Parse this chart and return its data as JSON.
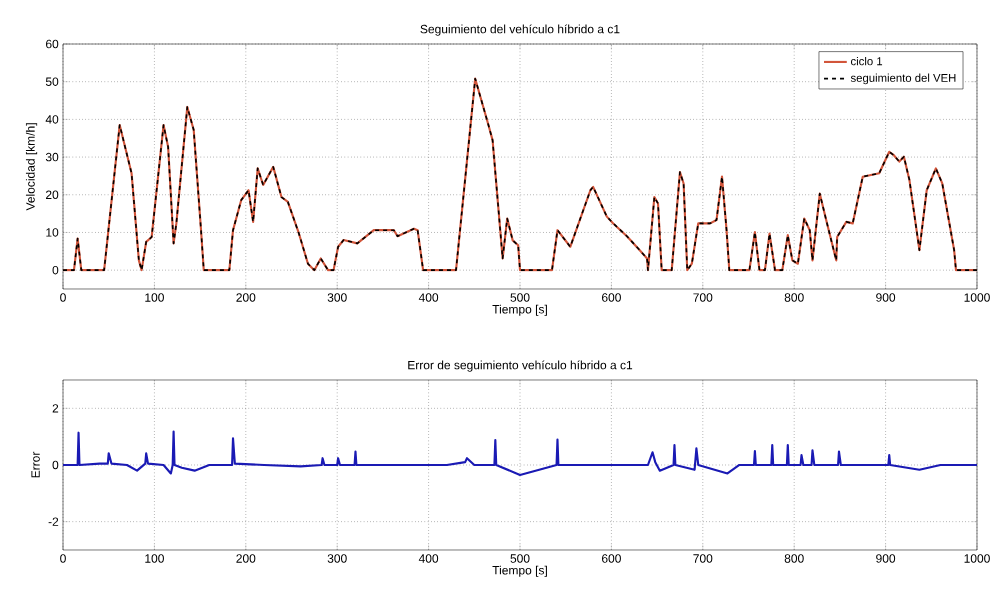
{
  "chart_data": [
    {
      "type": "line",
      "title": "Seguimiento del vehículo híbrido a c1",
      "xlabel": "Tiempo [s]",
      "ylabel": "Velocidad [km/h]",
      "x": [
        0,
        12,
        16,
        20,
        45,
        62,
        75,
        83,
        86,
        91,
        97,
        110,
        115,
        121,
        124,
        136,
        143,
        151,
        154,
        182,
        186,
        195,
        203,
        208,
        213,
        219,
        230,
        239,
        246,
        258,
        268,
        275,
        282,
        290,
        296,
        301,
        307,
        322,
        340,
        362,
        366,
        384,
        388,
        394,
        430,
        451,
        465,
        470,
        481,
        486,
        492,
        498,
        500,
        535,
        541,
        555,
        577,
        580,
        595,
        602,
        617,
        631,
        639,
        640,
        647,
        651,
        655,
        666,
        675,
        679,
        683,
        688,
        695,
        708,
        715,
        721,
        726,
        729,
        751,
        757,
        762,
        768,
        773,
        779,
        787,
        793,
        798,
        804,
        811,
        817,
        820,
        828,
        835,
        846,
        847,
        857,
        864,
        875,
        893,
        904,
        909,
        915,
        920,
        926,
        937,
        945,
        955,
        962,
        975,
        977,
        1000
      ],
      "series": [
        {
          "name": "ciclo 1",
          "color": "#d2553a",
          "line_style": "solid",
          "values": [
            0,
            0,
            8.4,
            0,
            0,
            38.5,
            25.7,
            2.6,
            0,
            7.5,
            8.8,
            38.5,
            32.7,
            7.1,
            12.4,
            43.3,
            37.2,
            10.6,
            0,
            0,
            10.6,
            18.6,
            21.2,
            12.8,
            27,
            22.6,
            27.4,
            19.4,
            18.1,
            9.8,
            1.7,
            0,
            3.1,
            0,
            0,
            6.2,
            8,
            7.1,
            10.6,
            10.6,
            9,
            11,
            10.6,
            0,
            0,
            50.8,
            38.9,
            34.5,
            3.1,
            13.7,
            7.9,
            6.6,
            0,
            0,
            10.6,
            6.2,
            21.2,
            22.1,
            14.2,
            12.4,
            9,
            5.3,
            3.1,
            0,
            19.4,
            17.7,
            0,
            0,
            26,
            23,
            0,
            1.7,
            12.4,
            12.4,
            13.3,
            24.8,
            10.6,
            0,
            0,
            10.1,
            0,
            0,
            9.7,
            0,
            0,
            9.3,
            2.6,
            1.7,
            13.7,
            10.6,
            2.6,
            20.3,
            13.3,
            2.6,
            8.8,
            12.8,
            12.4,
            24.8,
            25.7,
            31.4,
            30.5,
            28.8,
            30.1,
            24,
            5.3,
            21.2,
            27,
            23,
            5.3,
            0,
            0
          ]
        },
        {
          "name": "seguimiento del VEH",
          "color": "#000000",
          "line_style": "dashed",
          "values": [
            0,
            0,
            8.4,
            0,
            0,
            38.5,
            25.7,
            2.6,
            0,
            7.5,
            8.8,
            38.5,
            32.7,
            7.1,
            12.4,
            43.3,
            37.2,
            10.6,
            0,
            0,
            10.6,
            18.6,
            21.2,
            12.8,
            27,
            22.6,
            27.4,
            19.4,
            18.1,
            9.8,
            1.7,
            0,
            3.1,
            0,
            0,
            6.2,
            8,
            7.1,
            10.6,
            10.6,
            9,
            11,
            10.6,
            0,
            0,
            50.8,
            38.9,
            34.5,
            3.1,
            13.7,
            7.9,
            6.6,
            0,
            0,
            10.6,
            6.2,
            21.2,
            22.1,
            14.2,
            12.4,
            9,
            5.3,
            3.1,
            0,
            19.4,
            17.7,
            0,
            0,
            26,
            23,
            0,
            1.7,
            12.4,
            12.4,
            13.3,
            24.8,
            10.6,
            0,
            0,
            10.1,
            0,
            0,
            9.7,
            0,
            0,
            9.3,
            2.6,
            1.7,
            13.7,
            10.6,
            2.6,
            20.3,
            13.3,
            2.6,
            8.8,
            12.8,
            12.4,
            24.8,
            25.7,
            31.4,
            30.5,
            28.8,
            30.1,
            24,
            5.3,
            21.2,
            27,
            23,
            5.3,
            0,
            0
          ]
        }
      ],
      "xlim": [
        0,
        1000
      ],
      "ylim": [
        -5,
        60
      ],
      "xticks": [
        0,
        100,
        200,
        300,
        400,
        500,
        600,
        700,
        800,
        900,
        1000
      ],
      "yticks": [
        0,
        10,
        20,
        30,
        40,
        50,
        60
      ],
      "grid": true,
      "legend": "top right"
    },
    {
      "type": "line",
      "title": "Error de seguimiento vehículo híbrido a c1",
      "xlabel": "Tiempo [s]",
      "ylabel": "Error",
      "x": [
        0,
        16,
        17,
        18,
        40,
        49,
        50,
        53,
        70,
        81,
        90,
        91,
        93,
        110,
        118,
        120,
        121,
        122,
        130,
        144,
        160,
        185,
        186,
        188,
        220,
        260,
        283,
        284,
        286,
        300,
        301,
        303,
        319,
        320,
        321,
        380,
        420,
        440,
        442,
        450,
        472,
        473,
        474,
        500,
        540,
        541,
        542,
        600,
        640,
        645,
        648,
        653,
        668,
        669,
        670,
        691,
        693,
        695,
        727,
        740,
        756,
        757,
        758,
        775,
        776,
        777,
        792,
        793,
        794,
        807,
        808,
        810,
        819,
        820,
        822,
        848,
        849,
        851,
        880,
        903,
        904,
        905,
        937,
        960,
        1000
      ],
      "series": [
        {
          "color": "#1a1ab4",
          "values": [
            0,
            0,
            1.14,
            0,
            0.05,
            0.05,
            0.41,
            0.05,
            0,
            -0.2,
            0.05,
            0.41,
            0.05,
            0,
            -0.3,
            0,
            1.18,
            0,
            -0.1,
            -0.2,
            0,
            0,
            0.94,
            0.05,
            0,
            -0.05,
            0,
            0.24,
            0,
            0,
            0.24,
            0,
            0,
            0.47,
            0,
            0,
            0,
            0.1,
            0.24,
            0,
            0,
            0.88,
            0,
            -0.35,
            0,
            0.9,
            0,
            0,
            0,
            0.45,
            0.1,
            -0.2,
            0,
            0.7,
            0,
            -0.17,
            0.59,
            0,
            -0.3,
            0,
            0,
            0.49,
            0,
            0,
            0.7,
            0,
            0,
            0.7,
            0,
            0,
            0.35,
            0,
            0,
            0.52,
            0,
            0,
            0.47,
            0,
            0,
            0,
            0.35,
            0,
            -0.17,
            0,
            0
          ]
        }
      ],
      "xlim": [
        0,
        1000
      ],
      "ylim": [
        -3,
        3
      ],
      "xticks": [
        0,
        100,
        200,
        300,
        400,
        500,
        600,
        700,
        800,
        900,
        1000
      ],
      "yticks": [
        -2,
        0,
        2
      ],
      "grid": true
    }
  ]
}
